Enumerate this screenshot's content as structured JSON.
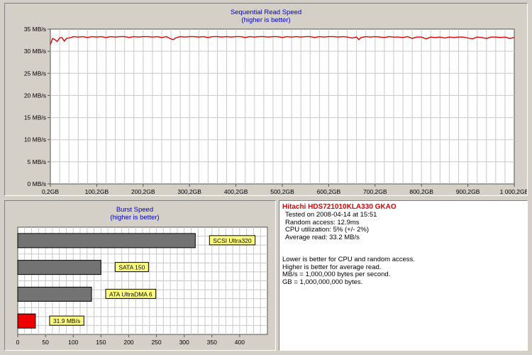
{
  "chart_data": [
    {
      "type": "line",
      "title": "Sequential Read Speed",
      "subtitle": "(higher is better)",
      "xlabel": "",
      "ylabel": "",
      "xlim": [
        0.2,
        1000
      ],
      "ylim": [
        0,
        35
      ],
      "x_tick_labels": [
        "0,2GB",
        "100,2GB",
        "200,2GB",
        "300,2GB",
        "400,2GB",
        "500,2GB",
        "600,2GB",
        "700,2GB",
        "800,2GB",
        "900,2GB",
        "1 000,2GB"
      ],
      "y_tick_labels": [
        "0 MB/s",
        "5 MB/s",
        "10 MB/s",
        "15 MB/s",
        "20 MB/s",
        "25 MB/s",
        "30 MB/s",
        "35 MB/s"
      ],
      "grid": true,
      "series": [
        {
          "color": "#e00000",
          "x": [
            0.2,
            5,
            10,
            15,
            20,
            25,
            30,
            35,
            40,
            45,
            50,
            60,
            70,
            80,
            90,
            100,
            110,
            120,
            130,
            140,
            150,
            160,
            170,
            180,
            190,
            200,
            210,
            220,
            230,
            240,
            250,
            260,
            265,
            270,
            280,
            290,
            300,
            310,
            320,
            330,
            340,
            350,
            360,
            370,
            380,
            390,
            400,
            410,
            420,
            430,
            440,
            450,
            460,
            470,
            480,
            490,
            500,
            510,
            520,
            530,
            540,
            550,
            560,
            570,
            580,
            590,
            600,
            610,
            620,
            630,
            640,
            650,
            660,
            665,
            670,
            680,
            690,
            700,
            710,
            720,
            730,
            740,
            750,
            760,
            770,
            780,
            790,
            800,
            810,
            820,
            830,
            840,
            850,
            860,
            870,
            880,
            890,
            900,
            910,
            920,
            930,
            940,
            950,
            960,
            970,
            980,
            990,
            1000
          ],
          "y": [
            31.5,
            32.9,
            32.6,
            32.2,
            33.0,
            33.1,
            32.3,
            32.9,
            33.0,
            33.1,
            33.3,
            33.2,
            33.3,
            33.1,
            33.3,
            33.2,
            33.3,
            33.1,
            33.3,
            33.2,
            33.3,
            33.3,
            33.1,
            33.3,
            33.2,
            33.3,
            33.3,
            33.2,
            33.3,
            33.1,
            33.3,
            32.8,
            32.6,
            33.0,
            33.3,
            33.2,
            33.3,
            33.3,
            33.2,
            33.3,
            33.1,
            33.3,
            33.3,
            33.2,
            33.3,
            33.2,
            33.3,
            33.3,
            33.1,
            33.3,
            33.2,
            33.3,
            33.3,
            33.2,
            33.3,
            33.3,
            33.1,
            33.3,
            33.2,
            33.3,
            33.2,
            33.3,
            33.3,
            33.1,
            33.3,
            33.2,
            33.3,
            33.3,
            33.2,
            33.3,
            33.2,
            33.0,
            33.2,
            32.6,
            33.1,
            33.3,
            33.2,
            33.3,
            33.2,
            33.1,
            33.3,
            33.2,
            33.2,
            33.1,
            33.3,
            32.9,
            33.2,
            33.2,
            32.8,
            33.2,
            33.1,
            33.2,
            33.0,
            33.2,
            33.1,
            33.2,
            33.2,
            33.0,
            32.8,
            33.2,
            33.1,
            32.9,
            33.2,
            33.2,
            33.1,
            33.2,
            32.9,
            33.1
          ]
        }
      ]
    },
    {
      "type": "bar",
      "orientation": "horizontal",
      "title": "Burst Speed",
      "subtitle": "(higher is better)",
      "xlim": [
        0,
        450
      ],
      "x_tick_labels": [
        "0",
        "50",
        "100",
        "150",
        "200",
        "250",
        "300",
        "350",
        "400"
      ],
      "grid": true,
      "bars": [
        {
          "label": "SCSI Ultra320",
          "value": 320,
          "color": "#737373"
        },
        {
          "label": "SATA 150",
          "value": 150,
          "color": "#737373"
        },
        {
          "label": "ATA UltraDMA 6",
          "value": 133,
          "color": "#737373"
        },
        {
          "label": "31.9 MB/s",
          "value": 31.9,
          "color": "#ee0000"
        }
      ]
    }
  ],
  "info": {
    "title": "Hitachi HDS721010KLA330 GKAO",
    "lines": [
      "Tested on 2008-04-14 at 15:51",
      "Random access: 12.9ms",
      "CPU utilization: 5% (+/- 2%)",
      "Average read: 33.2 MB/s"
    ],
    "notes": [
      "Lower is better for CPU and random access.",
      "Higher is better for average read.",
      "MB/s = 1,000,000 bytes per second.",
      "GB = 1,000,000,000 bytes."
    ]
  }
}
